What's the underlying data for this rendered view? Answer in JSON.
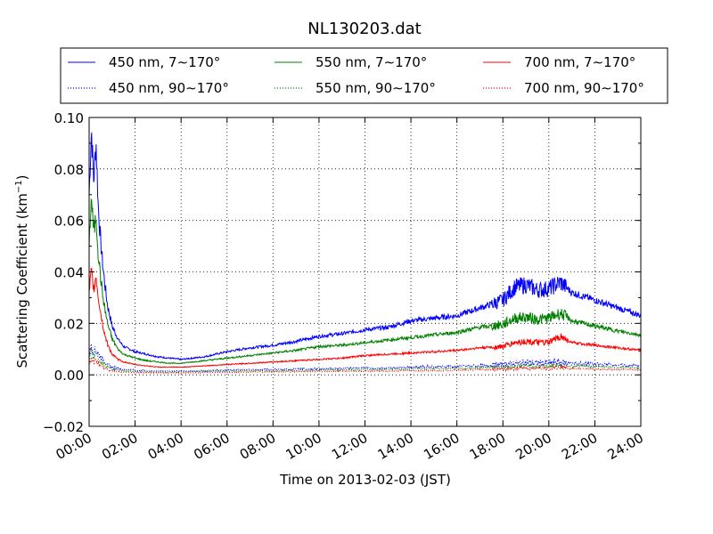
{
  "chart_data": {
    "type": "line",
    "title": "NL130203.dat",
    "xlabel": "Time on 2013-02-03 (JST)",
    "ylabel": "Scattering Coefficient (km",
    "ylabel_sup": "−1",
    "ylabel_close": ")",
    "xlim": [
      "00:00",
      "24:00"
    ],
    "ylim": [
      -0.02,
      0.1
    ],
    "grid": true,
    "legend_position": "top",
    "x_ticks": [
      "00:00",
      "02:00",
      "04:00",
      "06:00",
      "08:00",
      "10:00",
      "12:00",
      "14:00",
      "16:00",
      "18:00",
      "20:00",
      "22:00",
      "24:00"
    ],
    "y_ticks": [
      "−0.02",
      "0.00",
      "0.02",
      "0.04",
      "0.06",
      "0.08",
      "0.10"
    ],
    "x_hours": [
      0.0,
      0.1,
      0.2,
      0.3,
      0.4,
      0.5,
      0.6,
      0.7,
      0.8,
      1.0,
      1.25,
      1.5,
      2.0,
      2.5,
      3.0,
      3.5,
      4.0,
      4.5,
      5.0,
      6.0,
      7.0,
      8.0,
      9.0,
      10.0,
      11.0,
      12.0,
      13.0,
      14.0,
      15.0,
      16.0,
      17.0,
      18.0,
      18.5,
      19.0,
      19.5,
      20.0,
      20.5,
      21.0,
      22.0,
      23.0,
      24.0
    ],
    "series": [
      {
        "name": "450 nm, 7∼170°",
        "color": "#0000ff",
        "style": "solid",
        "values": [
          0.07,
          0.096,
          0.075,
          0.091,
          0.065,
          0.052,
          0.042,
          0.034,
          0.027,
          0.019,
          0.014,
          0.011,
          0.009,
          0.008,
          0.007,
          0.0065,
          0.006,
          0.0065,
          0.007,
          0.009,
          0.0105,
          0.0115,
          0.013,
          0.015,
          0.016,
          0.0175,
          0.0185,
          0.021,
          0.022,
          0.023,
          0.026,
          0.029,
          0.034,
          0.035,
          0.033,
          0.0335,
          0.036,
          0.032,
          0.029,
          0.026,
          0.023
        ]
      },
      {
        "name": "450 nm, 90∼170°",
        "color": "#0000ff",
        "style": "dotted",
        "values": [
          0.008,
          0.011,
          0.009,
          0.01,
          0.008,
          0.007,
          0.006,
          0.005,
          0.004,
          0.003,
          0.0025,
          0.002,
          0.0018,
          0.0016,
          0.0015,
          0.0015,
          0.0015,
          0.0015,
          0.0016,
          0.0018,
          0.002,
          0.0021,
          0.0022,
          0.0024,
          0.0025,
          0.0026,
          0.0027,
          0.003,
          0.0032,
          0.0033,
          0.0036,
          0.004,
          0.0045,
          0.0048,
          0.0046,
          0.0046,
          0.005,
          0.0045,
          0.0042,
          0.0038,
          0.0035
        ]
      },
      {
        "name": "550 nm, 7∼170°",
        "color": "#008000",
        "style": "solid",
        "values": [
          0.052,
          0.069,
          0.055,
          0.062,
          0.047,
          0.038,
          0.03,
          0.025,
          0.02,
          0.014,
          0.01,
          0.008,
          0.0065,
          0.0055,
          0.005,
          0.0045,
          0.0045,
          0.005,
          0.0055,
          0.0065,
          0.0075,
          0.0085,
          0.0095,
          0.011,
          0.0115,
          0.0125,
          0.0135,
          0.0145,
          0.0155,
          0.0165,
          0.0185,
          0.0195,
          0.022,
          0.0225,
          0.0215,
          0.022,
          0.024,
          0.021,
          0.019,
          0.017,
          0.0155
        ]
      },
      {
        "name": "550 nm, 90∼170°",
        "color": "#008000",
        "style": "dotted",
        "values": [
          0.006,
          0.009,
          0.007,
          0.008,
          0.006,
          0.005,
          0.0045,
          0.004,
          0.003,
          0.0022,
          0.0018,
          0.0015,
          0.0013,
          0.0012,
          0.0011,
          0.0011,
          0.0011,
          0.0012,
          0.0013,
          0.0014,
          0.0015,
          0.0016,
          0.0017,
          0.0018,
          0.0019,
          0.002,
          0.0021,
          0.0023,
          0.0024,
          0.0025,
          0.0028,
          0.003,
          0.0034,
          0.0036,
          0.0035,
          0.0035,
          0.0038,
          0.0034,
          0.0032,
          0.0029,
          0.0027
        ]
      },
      {
        "name": "700 nm, 7∼170°",
        "color": "#ff0000",
        "style": "solid",
        "values": [
          0.032,
          0.04,
          0.033,
          0.038,
          0.03,
          0.024,
          0.019,
          0.015,
          0.012,
          0.008,
          0.006,
          0.005,
          0.004,
          0.0035,
          0.003,
          0.003,
          0.003,
          0.0032,
          0.0035,
          0.004,
          0.0045,
          0.005,
          0.0055,
          0.006,
          0.0065,
          0.0075,
          0.008,
          0.0085,
          0.009,
          0.0095,
          0.0105,
          0.011,
          0.0125,
          0.013,
          0.0125,
          0.0125,
          0.015,
          0.0125,
          0.0115,
          0.0105,
          0.0095
        ]
      },
      {
        "name": "700 nm, 90∼170°",
        "color": "#ff0000",
        "style": "dotted",
        "values": [
          0.004,
          0.006,
          0.005,
          0.0055,
          0.0045,
          0.0035,
          0.003,
          0.0025,
          0.002,
          0.0015,
          0.0012,
          0.001,
          0.0009,
          0.0008,
          0.0008,
          0.0008,
          0.0008,
          0.0008,
          0.0009,
          0.001,
          0.0011,
          0.0012,
          0.0012,
          0.0013,
          0.0014,
          0.0014,
          0.0015,
          0.0016,
          0.0017,
          0.0018,
          0.002,
          0.0022,
          0.0025,
          0.0026,
          0.0025,
          0.0025,
          0.0027,
          0.0024,
          0.0022,
          0.002,
          0.0019
        ]
      }
    ]
  }
}
